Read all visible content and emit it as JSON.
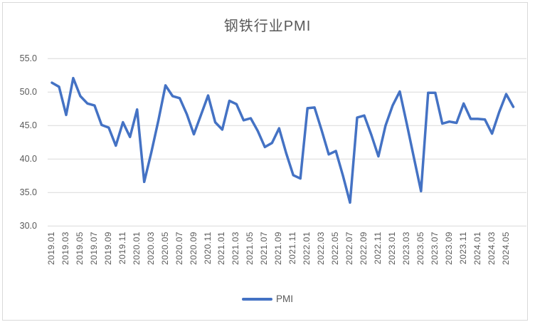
{
  "chart": {
    "title": "钢铁行业PMI",
    "legend_label": "PMI",
    "colors": {
      "line": "#4472C4",
      "grid": "#D9D9D9",
      "text": "#595959",
      "border": "#D9D9D9",
      "background": "#FFFFFF"
    }
  },
  "chart_data": {
    "type": "line",
    "title": "钢铁行业PMI",
    "xlabel": "",
    "ylabel": "",
    "ylim": [
      30.0,
      55.0
    ],
    "y_tick_step": 5.0,
    "y_tick_labels": [
      "55.0",
      "50.0",
      "45.0",
      "40.0",
      "35.0",
      "30.0"
    ],
    "x_tick_every": 2,
    "grid": "horizontal",
    "legend_position": "bottom",
    "categories": [
      "2019.01",
      "2019.02",
      "2019.03",
      "2019.04",
      "2019.05",
      "2019.06",
      "2019.07",
      "2019.08",
      "2019.09",
      "2019.10",
      "2019.11",
      "2019.12",
      "2020.01",
      "2020.02",
      "2020.03",
      "2020.04",
      "2020.05",
      "2020.06",
      "2020.07",
      "2020.08",
      "2020.09",
      "2020.10",
      "2020.11",
      "2020.12",
      "2021.01",
      "2021.02",
      "2021.03",
      "2021.04",
      "2021.05",
      "2021.06",
      "2021.07",
      "2021.08",
      "2021.09",
      "2021.10",
      "2021.11",
      "2021.12",
      "2022.01",
      "2022.02",
      "2022.03",
      "2022.04",
      "2022.05",
      "2022.06",
      "2022.07",
      "2022.08",
      "2022.09",
      "2022.10",
      "2022.11",
      "2022.12",
      "2023.01",
      "2023.02",
      "2023.03",
      "2023.04",
      "2023.05",
      "2023.06",
      "2023.07",
      "2023.08",
      "2023.09",
      "2023.10",
      "2023.11",
      "2023.12",
      "2024.01",
      "2024.02",
      "2024.03",
      "2024.04",
      "2024.05",
      "2024.06"
    ],
    "series": [
      {
        "name": "PMI",
        "values": [
          51.4,
          50.8,
          46.6,
          52.1,
          49.4,
          48.3,
          48.0,
          45.1,
          44.7,
          42.0,
          45.5,
          43.3,
          47.4,
          36.6,
          41.0,
          45.8,
          51.0,
          49.4,
          49.1,
          46.7,
          43.7,
          46.6,
          49.5,
          45.5,
          44.4,
          48.7,
          48.2,
          45.8,
          46.1,
          44.2,
          41.8,
          42.4,
          44.6,
          40.9,
          37.6,
          37.1,
          47.6,
          47.7,
          44.3,
          40.7,
          41.2,
          37.5,
          33.5,
          46.2,
          46.5,
          43.6,
          40.4,
          45.0,
          48.0,
          50.1,
          45.2,
          40.2,
          35.2,
          49.9,
          49.9,
          45.3,
          45.6,
          45.4,
          48.3,
          46.0,
          46.0,
          45.9,
          43.8,
          47.0,
          49.7,
          47.8
        ]
      }
    ]
  }
}
